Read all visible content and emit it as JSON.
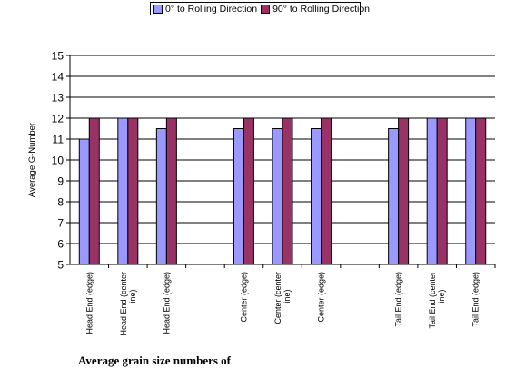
{
  "chart_data": {
    "type": "bar",
    "title": "",
    "caption": "Average grain size numbers of",
    "ylabel": "Average G-Number",
    "xlabel": "",
    "ylim": [
      5,
      15
    ],
    "yticks": [
      5,
      6,
      7,
      8,
      9,
      10,
      11,
      12,
      13,
      14,
      15
    ],
    "grid": true,
    "legend_position": "top",
    "categories": [
      "Head End (edge)",
      "Head End (center line)",
      "Head End (edge)",
      "",
      "Center (edge)",
      "Center (center line)",
      "Center (edge)",
      "",
      "Tail End (edge)",
      "Tail End (center line)",
      "Tail End (edge)"
    ],
    "series": [
      {
        "name": "0° to Rolling Direction",
        "color": "#9999ff",
        "values": [
          11,
          12,
          11.5,
          null,
          11.5,
          11.5,
          11.5,
          null,
          11.5,
          12,
          12
        ]
      },
      {
        "name": "90° to Rolling Direction",
        "color": "#993366",
        "values": [
          12,
          12,
          12,
          null,
          12,
          12,
          12,
          null,
          12,
          12,
          12
        ]
      }
    ]
  }
}
